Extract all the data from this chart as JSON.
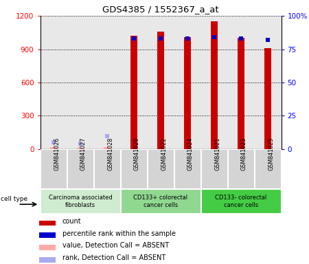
{
  "title": "GDS4385 / 1552367_a_at",
  "samples": [
    "GSM841026",
    "GSM841027",
    "GSM841028",
    "GSM841020",
    "GSM841022",
    "GSM841024",
    "GSM841021",
    "GSM841023",
    "GSM841025"
  ],
  "count_values": [
    18,
    15,
    20,
    1020,
    1060,
    1010,
    1150,
    1000,
    910
  ],
  "rank_values": [
    5,
    4,
    10,
    83,
    83,
    83,
    84,
    83,
    82
  ],
  "absent_mask": [
    true,
    true,
    true,
    false,
    false,
    false,
    false,
    false,
    false
  ],
  "groups": [
    {
      "label": "Carcinoma associated\nfibroblasts",
      "start": 0,
      "end": 3,
      "color": "#d0ecd0"
    },
    {
      "label": "CD133+ colorectal\ncancer cells",
      "start": 3,
      "end": 6,
      "color": "#90d890"
    },
    {
      "label": "CD133- colorectal\ncancer cells",
      "start": 6,
      "end": 9,
      "color": "#44cc44"
    }
  ],
  "ylim_left": [
    0,
    1200
  ],
  "ylim_right": [
    0,
    100
  ],
  "yticks_left": [
    0,
    300,
    600,
    900,
    1200
  ],
  "ytick_labels_left": [
    "0",
    "300",
    "600",
    "900",
    "1200"
  ],
  "yticks_right": [
    0,
    25,
    50,
    75,
    100
  ],
  "ytick_labels_right": [
    "0",
    "25",
    "50",
    "75",
    "100%"
  ],
  "bar_color_present": "#cc0000",
  "bar_color_absent": "#ffaaaa",
  "dot_color_present": "#0000cc",
  "dot_color_absent": "#aaaaee",
  "legend_items": [
    {
      "label": "count",
      "color": "#cc0000"
    },
    {
      "label": "percentile rank within the sample",
      "color": "#0000cc"
    },
    {
      "label": "value, Detection Call = ABSENT",
      "color": "#ffaaaa"
    },
    {
      "label": "rank, Detection Call = ABSENT",
      "color": "#aaaaee"
    }
  ],
  "cell_type_label": "cell type",
  "plot_bg_color": "#e8e8e8",
  "sample_box_color": "#d4d4d4",
  "bar_width": 0.25,
  "dot_size": 25
}
